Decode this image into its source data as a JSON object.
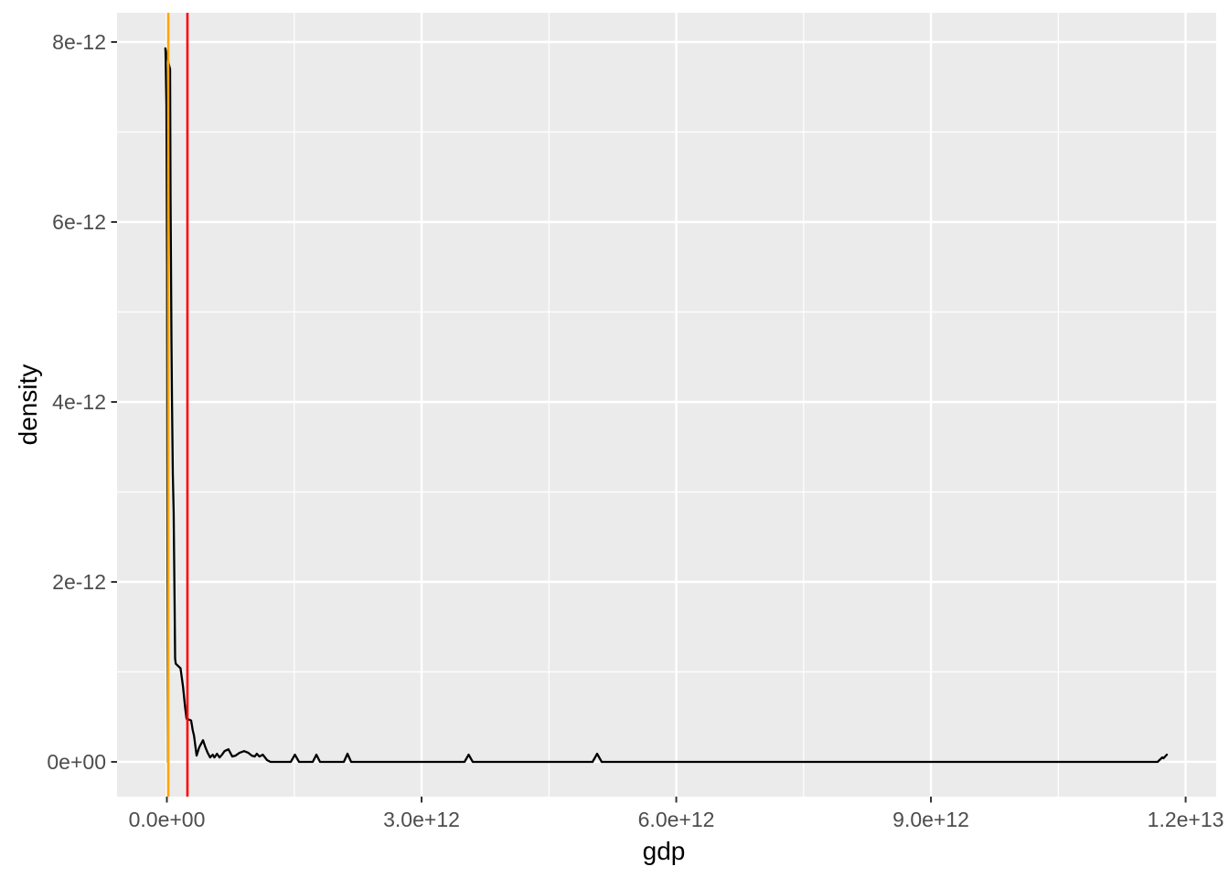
{
  "chart_data": {
    "type": "line",
    "subtype": "density-curve",
    "title": "",
    "xlabel": "gdp",
    "ylabel": "density",
    "x_unit": "1e+12",
    "y_unit": "1e-12",
    "grid": true,
    "legend": "none",
    "panel_bg": "#EBEBEB",
    "grid_color": "#FFFFFF",
    "tick_color": "#333333",
    "tick_text_color": "#4D4D4D",
    "curve_color": "#000000",
    "xlim": [
      -0.587,
      12.36
    ],
    "ylim": [
      -0.386,
      8.325
    ],
    "x_ticks": [
      {
        "value": 0,
        "label": "0.0e+00"
      },
      {
        "value": 3,
        "label": "3.0e+12"
      },
      {
        "value": 6,
        "label": "6.0e+12"
      },
      {
        "value": 9,
        "label": "9.0e+12"
      },
      {
        "value": 12,
        "label": "1.2e+13"
      }
    ],
    "y_ticks": [
      {
        "value": 0,
        "label": "0e+00"
      },
      {
        "value": 2,
        "label": "2e-12"
      },
      {
        "value": 4,
        "label": "4e-12"
      },
      {
        "value": 6,
        "label": "6e-12"
      },
      {
        "value": 8,
        "label": "8e-12"
      }
    ],
    "x_minor": [
      1.5,
      4.5,
      7.5,
      10.5
    ],
    "y_minor": [
      1,
      3,
      5,
      7
    ],
    "vlines": [
      {
        "name": "orange-vline",
        "x": 0.016,
        "color": "#FFA500"
      },
      {
        "name": "red-vline",
        "x": 0.242,
        "color": "#FF0000"
      }
    ],
    "curve": [
      [
        0.013,
        0.0
      ],
      [
        0.008,
        2.0
      ],
      [
        0.002,
        5.5
      ],
      [
        -0.005,
        7.3
      ],
      [
        -0.016,
        7.9
      ],
      [
        -0.018,
        7.93
      ],
      [
        0.0,
        7.85
      ],
      [
        0.02,
        7.76
      ],
      [
        0.038,
        7.7
      ],
      [
        0.043,
        6.3
      ],
      [
        0.048,
        5.5
      ],
      [
        0.054,
        4.7
      ],
      [
        0.06,
        4.0
      ],
      [
        0.07,
        3.2
      ],
      [
        0.08,
        2.78
      ],
      [
        0.09,
        1.8
      ],
      [
        0.097,
        1.15
      ],
      [
        0.105,
        1.09
      ],
      [
        0.16,
        1.04
      ],
      [
        0.19,
        0.84
      ],
      [
        0.215,
        0.6
      ],
      [
        0.232,
        0.48
      ],
      [
        0.26,
        0.47
      ],
      [
        0.285,
        0.46
      ],
      [
        0.305,
        0.35
      ],
      [
        0.32,
        0.29
      ],
      [
        0.35,
        0.07
      ],
      [
        0.38,
        0.16
      ],
      [
        0.425,
        0.24
      ],
      [
        0.455,
        0.16
      ],
      [
        0.48,
        0.1
      ],
      [
        0.51,
        0.05
      ],
      [
        0.54,
        0.08
      ],
      [
        0.56,
        0.05
      ],
      [
        0.59,
        0.09
      ],
      [
        0.62,
        0.05
      ],
      [
        0.65,
        0.08
      ],
      [
        0.68,
        0.12
      ],
      [
        0.725,
        0.14
      ],
      [
        0.77,
        0.06
      ],
      [
        0.81,
        0.07
      ],
      [
        0.855,
        0.1
      ],
      [
        0.91,
        0.12
      ],
      [
        0.96,
        0.1
      ],
      [
        1.0,
        0.07
      ],
      [
        1.035,
        0.06
      ],
      [
        1.06,
        0.09
      ],
      [
        1.09,
        0.06
      ],
      [
        1.13,
        0.08
      ],
      [
        1.18,
        0.02
      ],
      [
        1.22,
        0.0
      ],
      [
        1.46,
        0.0
      ],
      [
        1.508,
        0.08
      ],
      [
        1.556,
        0.0
      ],
      [
        1.718,
        0.0
      ],
      [
        1.761,
        0.08
      ],
      [
        1.804,
        0.0
      ],
      [
        2.084,
        0.0
      ],
      [
        2.127,
        0.09
      ],
      [
        2.17,
        0.0
      ],
      [
        3.506,
        0.0
      ],
      [
        3.555,
        0.08
      ],
      [
        3.603,
        0.0
      ],
      [
        5.014,
        0.0
      ],
      [
        5.068,
        0.09
      ],
      [
        5.122,
        0.0
      ],
      [
        11.67,
        0.0
      ],
      [
        11.724,
        0.05
      ],
      [
        11.74,
        0.04
      ],
      [
        11.778,
        0.08
      ]
    ]
  }
}
